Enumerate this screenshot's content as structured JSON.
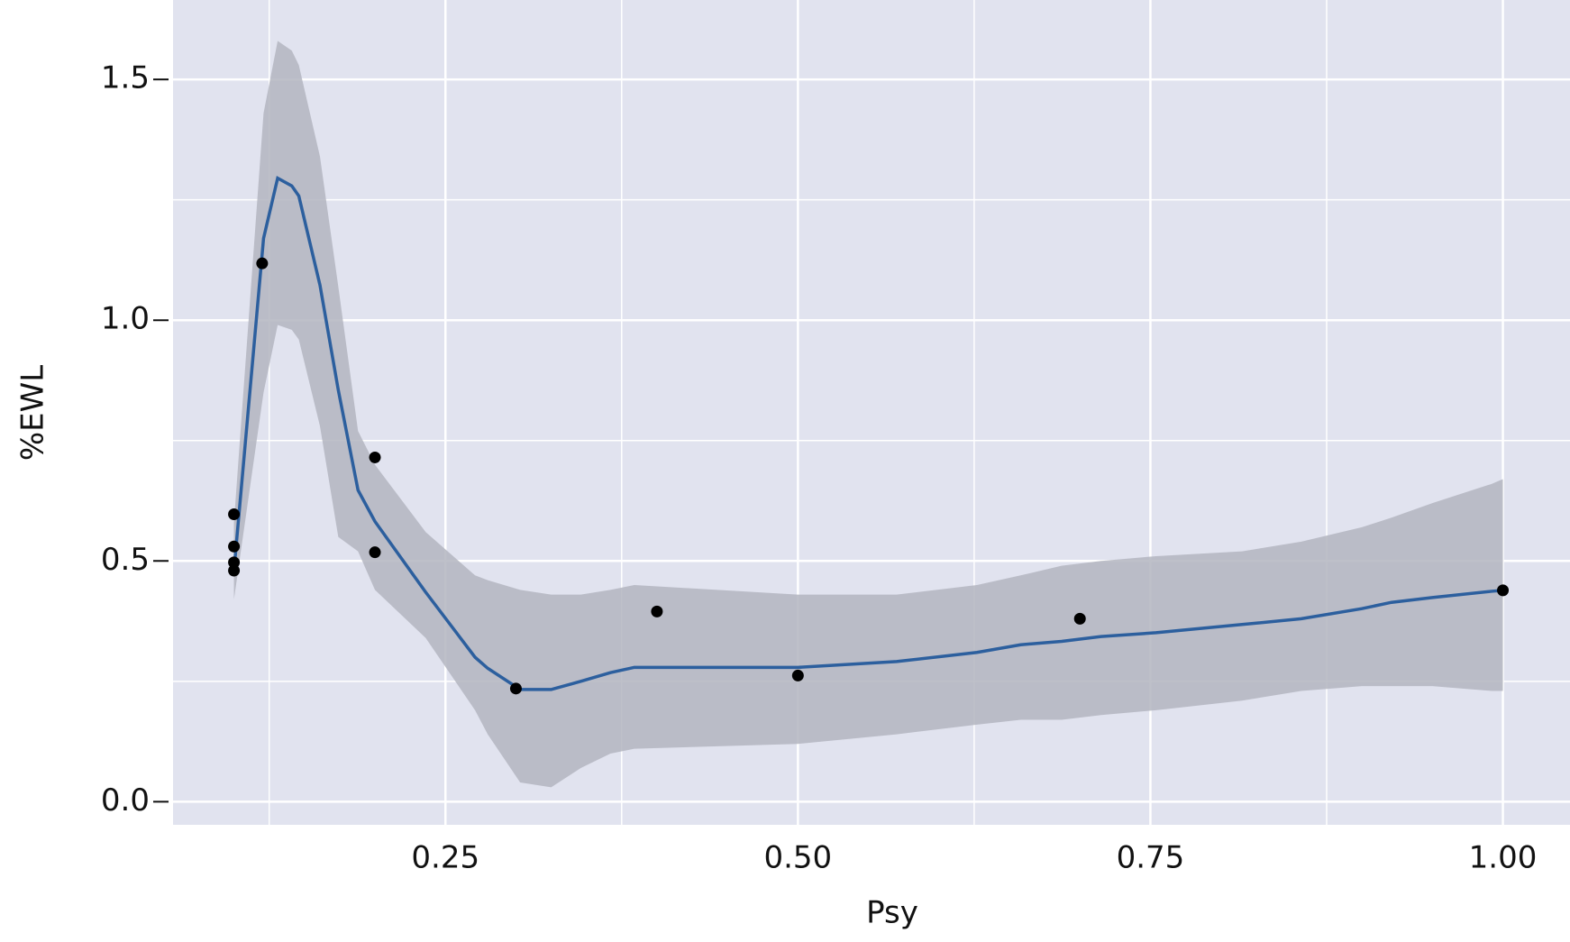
{
  "chart_data": {
    "type": "scatter",
    "x_label": "Psy",
    "y_label": "%EWL",
    "points": {
      "color": "#000000",
      "x": [
        0.1,
        0.1,
        0.1,
        0.1,
        0.12,
        0.2,
        0.2,
        0.3,
        0.4,
        0.5,
        0.7,
        1.0
      ],
      "y": [
        0.597,
        0.53,
        0.497,
        0.48,
        1.118,
        0.715,
        0.518,
        0.235,
        0.395,
        0.262,
        0.38,
        0.439
      ]
    },
    "smooth": {
      "color": "#2c5f9e",
      "band_color": "#b3b5bf",
      "x": [
        0.1,
        0.121,
        0.131,
        0.141,
        0.146,
        0.161,
        0.174,
        0.188,
        0.2,
        0.236,
        0.271,
        0.28,
        0.303,
        0.325,
        0.346,
        0.367,
        0.384,
        0.5,
        0.57,
        0.627,
        0.658,
        0.687,
        0.715,
        0.754,
        0.815,
        0.857,
        0.9,
        0.921,
        0.95,
        0.992,
        1.0
      ],
      "y": [
        0.48,
        1.17,
        1.295,
        1.279,
        1.258,
        1.073,
        0.855,
        0.647,
        0.582,
        0.435,
        0.3,
        0.277,
        0.233,
        0.233,
        0.25,
        0.268,
        0.279,
        0.279,
        0.291,
        0.31,
        0.326,
        0.333,
        0.343,
        0.351,
        0.368,
        0.38,
        0.401,
        0.414,
        0.424,
        0.437,
        0.439
      ],
      "upper": [
        0.58,
        1.43,
        1.58,
        1.56,
        1.53,
        1.34,
        1.07,
        0.77,
        0.7,
        0.56,
        0.47,
        0.46,
        0.44,
        0.43,
        0.43,
        0.44,
        0.45,
        0.43,
        0.43,
        0.45,
        0.47,
        0.49,
        0.5,
        0.51,
        0.52,
        0.54,
        0.57,
        0.59,
        0.62,
        0.66,
        0.67
      ],
      "lower": [
        0.42,
        0.85,
        0.99,
        0.98,
        0.96,
        0.78,
        0.55,
        0.52,
        0.44,
        0.34,
        0.19,
        0.14,
        0.04,
        0.03,
        0.07,
        0.1,
        0.11,
        0.12,
        0.14,
        0.16,
        0.17,
        0.17,
        0.18,
        0.19,
        0.21,
        0.23,
        0.24,
        0.24,
        0.24,
        0.23,
        0.23
      ]
    },
    "xlim": [
      0.0568,
      1.0476
    ],
    "ylim": [
      -0.048,
      1.665
    ],
    "xticks": [
      {
        "value": 0.25,
        "label": "0.25"
      },
      {
        "value": 0.5,
        "label": "0.50"
      },
      {
        "value": 0.75,
        "label": "0.75"
      },
      {
        "value": 1.0,
        "label": "1.00"
      }
    ],
    "yticks": [
      {
        "value": 0,
        "label": "0.0"
      },
      {
        "value": 0.5,
        "label": "0.5"
      },
      {
        "value": 1.0,
        "label": "1.0"
      },
      {
        "value": 1.5,
        "label": "1.5"
      }
    ],
    "grid": true,
    "background": "#e1e3ef"
  }
}
